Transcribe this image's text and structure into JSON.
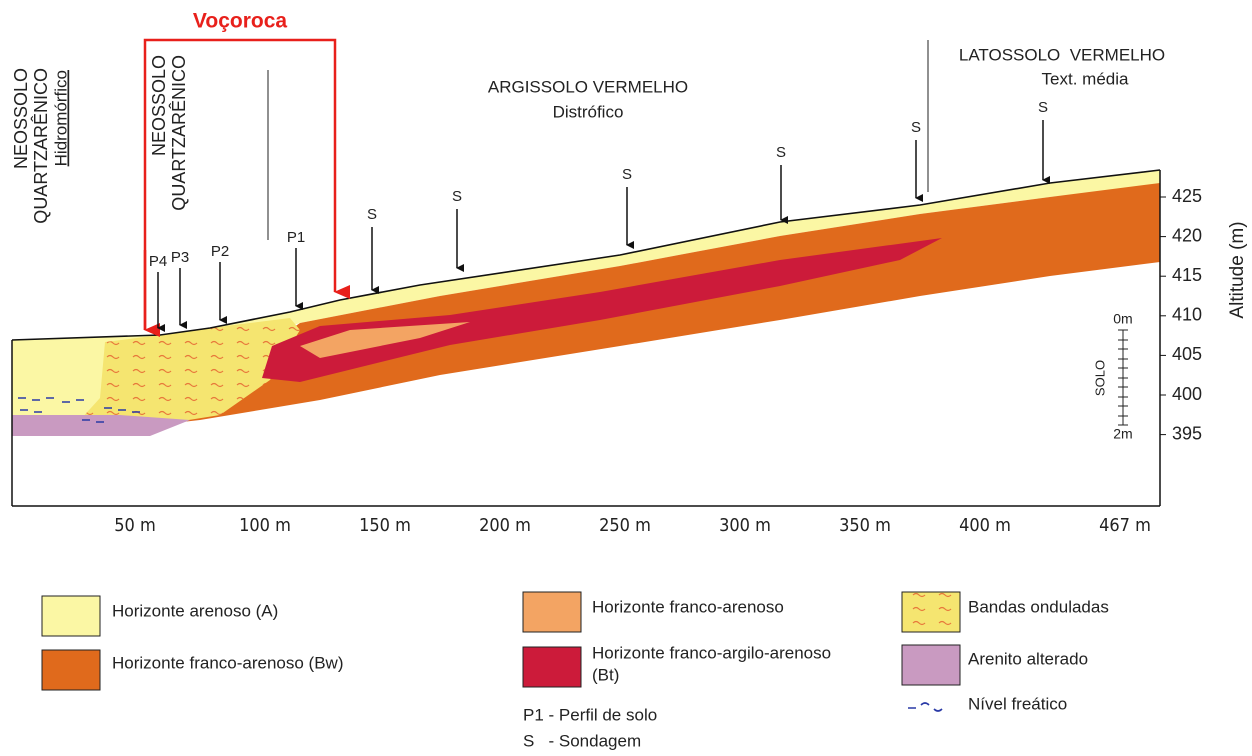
{
  "title": "Voçoroca",
  "soil_units": [
    {
      "lines": [
        "NEOSSOLO",
        "QUARTZARÊNICO"
      ],
      "qualifier": "Hidromórfico"
    },
    {
      "lines": [
        "NEOSSOLO",
        "QUARTZARÊNICO"
      ]
    },
    {
      "lines": [
        "ARGISSOLO VERMELHO"
      ],
      "qualifier": "Distrófico"
    },
    {
      "lines": [
        "LATOSSOLO  VERMELHO"
      ],
      "qualifier": "Text. média"
    }
  ],
  "profiles": [
    "P4",
    "P3",
    "P2",
    "P1"
  ],
  "soundings": [
    "S",
    "S",
    "S",
    "S",
    "S",
    "S"
  ],
  "x_axis": {
    "ticks": [
      "50 m",
      "100 m",
      "150 m",
      "200 m",
      "250 m",
      "300 m",
      "350 m",
      "400 m",
      "467 m"
    ]
  },
  "y_axis": {
    "label": "Altitude (m)",
    "ticks": [
      "425",
      "420",
      "415",
      "410",
      "405",
      "400",
      "395"
    ]
  },
  "scale_bar": {
    "label": "SOLO",
    "top": "0m",
    "bottom": "2m"
  },
  "legend": [
    {
      "lines": [
        "Horizonte arenoso (A)"
      ]
    },
    {
      "lines": [
        "Horizonte franco-arenoso (Bw)"
      ]
    },
    {
      "lines": [
        "Horizonte franco-arenoso"
      ]
    },
    {
      "lines": [
        "Horizonte franco-argilo-arenoso",
        "(Bt)"
      ]
    },
    {
      "lines": [
        "Bandas onduladas"
      ]
    },
    {
      "lines": [
        "Arenito alterado"
      ]
    },
    {
      "lines": [
        "Nível freático"
      ]
    },
    {
      "lines": [
        "P1 - Perfil de solo"
      ]
    },
    {
      "lines": [
        "S   - Sondagem"
      ]
    }
  ]
}
